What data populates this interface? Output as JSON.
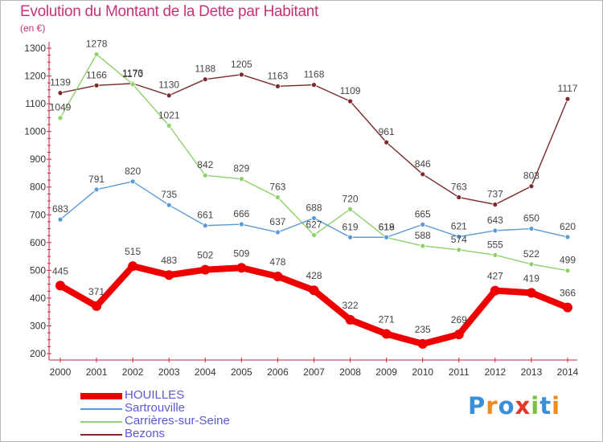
{
  "title": "Evolution du Montant de la Dette par Habitant",
  "unit_label": "(en €)",
  "logo": {
    "text": "Proxiti",
    "letter_colors": [
      "#3a8fd6",
      "#f08a1e",
      "#3a8fd6",
      "#e23a2a",
      "#7cc242",
      "#3a8fd6",
      "#f08a1e"
    ]
  },
  "chart_data": {
    "type": "line",
    "title": "Evolution du Montant de la Dette par Habitant",
    "ylabel": "(en €)",
    "xlabel": "",
    "x": [
      "2000",
      "2001",
      "2002",
      "2003",
      "2004",
      "2005",
      "2006",
      "2007",
      "2008",
      "2009",
      "2010",
      "2011",
      "2012",
      "2013",
      "2014"
    ],
    "ylim": [
      200,
      1300
    ],
    "yticks": [
      200,
      300,
      400,
      500,
      600,
      700,
      800,
      900,
      1000,
      1100,
      1200,
      1300
    ],
    "grid": false,
    "legend_position": "bottom-left",
    "series": [
      {
        "name": "HOUILLES",
        "color": "#ee0000",
        "emphasis": true,
        "values": [
          445,
          371,
          515,
          483,
          502,
          509,
          478,
          428,
          322,
          271,
          235,
          269,
          427,
          419,
          366
        ]
      },
      {
        "name": "Sartrouville",
        "color": "#5b9bd5",
        "emphasis": false,
        "values": [
          683,
          791,
          820,
          735,
          661,
          666,
          637,
          688,
          619,
          619,
          665,
          621,
          643,
          650,
          620
        ]
      },
      {
        "name": "Carrières-sur-Seine",
        "color": "#8fd16a",
        "emphasis": false,
        "values": [
          1049,
          1278,
          1170,
          1021,
          842,
          829,
          763,
          627,
          720,
          618,
          588,
          574,
          555,
          522,
          499
        ]
      },
      {
        "name": "Bezons",
        "color": "#7a2a2a",
        "emphasis": false,
        "values": [
          1139,
          1166,
          1173,
          1130,
          1188,
          1205,
          1163,
          1168,
          1109,
          961,
          846,
          763,
          737,
          803,
          1117
        ]
      }
    ]
  }
}
